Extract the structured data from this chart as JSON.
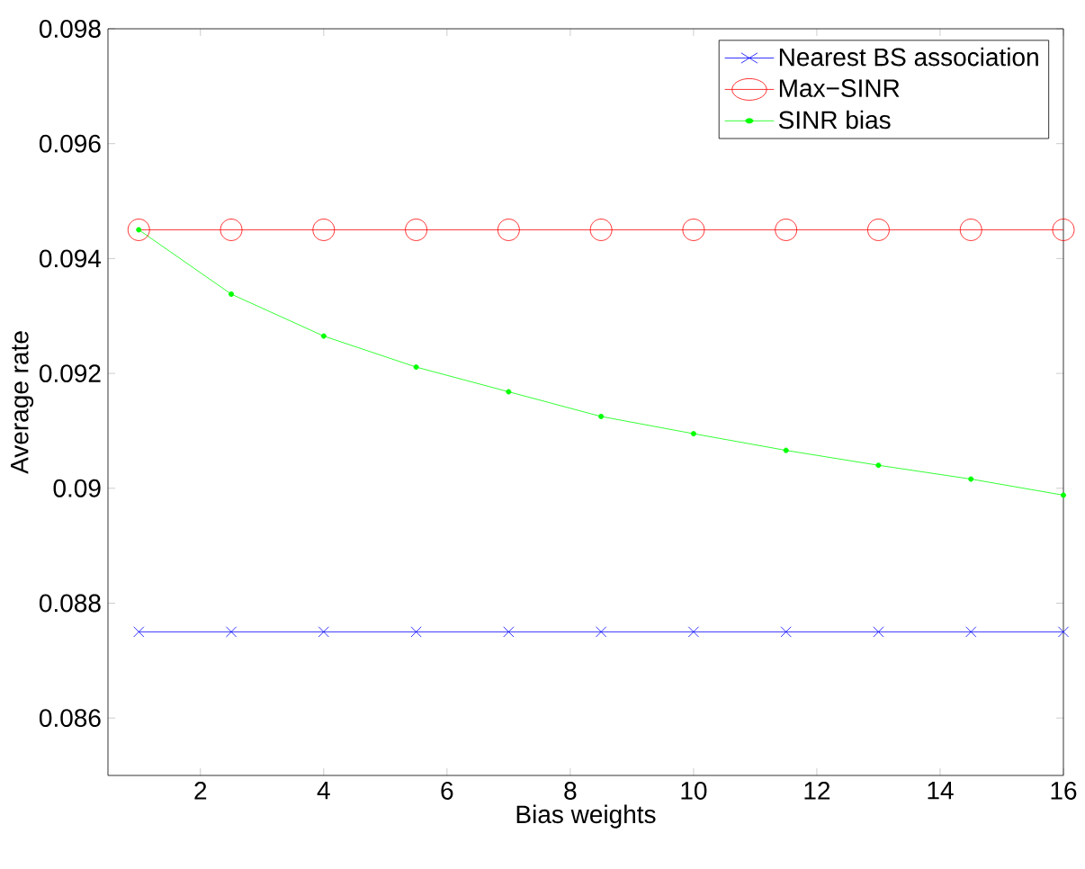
{
  "chart_data": {
    "type": "line",
    "xlabel": "Bias weights",
    "ylabel": "Average rate",
    "x": [
      1,
      2.5,
      4,
      5.5,
      7,
      8.5,
      10,
      11.5,
      13,
      14.5,
      16
    ],
    "xlim": [
      0.5,
      16
    ],
    "ylim": [
      0.085,
      0.098
    ],
    "xticks": [
      2,
      4,
      6,
      8,
      10,
      12,
      14,
      16
    ],
    "yticks": [
      {
        "value": 0.086,
        "label": "0.086"
      },
      {
        "value": 0.088,
        "label": "0.088"
      },
      {
        "value": 0.09,
        "label": "0.09"
      },
      {
        "value": 0.092,
        "label": "0.092"
      },
      {
        "value": 0.094,
        "label": "0.094"
      },
      {
        "value": 0.096,
        "label": "0.096"
      },
      {
        "value": 0.098,
        "label": "0.098"
      }
    ],
    "grid": false,
    "legend": "top right",
    "series": [
      {
        "name": "Nearest BS association",
        "color": "#0000ff",
        "marker": "cross",
        "values": [
          0.0875,
          0.0875,
          0.0875,
          0.0875,
          0.0875,
          0.0875,
          0.0875,
          0.0875,
          0.0875,
          0.0875,
          0.0875
        ]
      },
      {
        "name": "Max−SINR",
        "color": "#ff0000",
        "marker": "circle",
        "values": [
          0.0945,
          0.0945,
          0.0945,
          0.0945,
          0.0945,
          0.0945,
          0.0945,
          0.0945,
          0.0945,
          0.0945,
          0.0945
        ]
      },
      {
        "name": "SINR bias",
        "color": "#00ff00",
        "marker": "dot",
        "values": [
          0.0945,
          0.09338,
          0.09265,
          0.09211,
          0.09168,
          0.09125,
          0.09095,
          0.09066,
          0.0904,
          0.09016,
          0.08988
        ]
      }
    ]
  }
}
